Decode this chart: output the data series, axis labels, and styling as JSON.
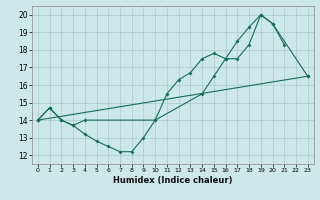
{
  "xlabel": "Humidex (Indice chaleur)",
  "bg_color": "#cce8e8",
  "grid_color": "#aacccc",
  "line_color": "#1a6b5a",
  "xlim": [
    -0.5,
    23.5
  ],
  "ylim": [
    11.5,
    20.5
  ],
  "xticks": [
    0,
    1,
    2,
    3,
    4,
    5,
    6,
    7,
    8,
    9,
    10,
    11,
    12,
    13,
    14,
    15,
    16,
    17,
    18,
    19,
    20,
    21,
    22,
    23
  ],
  "yticks": [
    12,
    13,
    14,
    15,
    16,
    17,
    18,
    19,
    20
  ],
  "line1_x": [
    0,
    1,
    2,
    3,
    4,
    5,
    6,
    7,
    8,
    9,
    10,
    11,
    12,
    13,
    14,
    15,
    16,
    17,
    18,
    19,
    20,
    21
  ],
  "line1_y": [
    14.0,
    14.7,
    14.0,
    13.7,
    13.2,
    12.8,
    12.5,
    12.2,
    12.2,
    13.0,
    14.0,
    15.5,
    16.3,
    16.7,
    17.5,
    17.8,
    17.5,
    17.5,
    18.3,
    20.0,
    19.5,
    18.3
  ],
  "line2_x": [
    0,
    1,
    2,
    3,
    4,
    10,
    14,
    15,
    16,
    17,
    18,
    19,
    20,
    23
  ],
  "line2_y": [
    14.0,
    14.7,
    14.0,
    13.7,
    14.0,
    14.0,
    15.5,
    16.5,
    17.5,
    18.5,
    19.3,
    20.0,
    19.5,
    16.5
  ],
  "line3_x": [
    0,
    23
  ],
  "line3_y": [
    14.0,
    16.5
  ]
}
